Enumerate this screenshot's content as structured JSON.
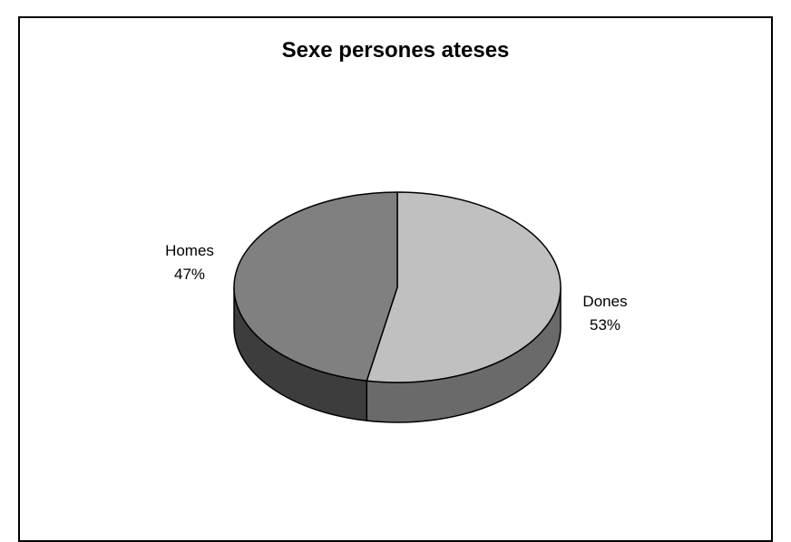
{
  "chart_data": {
    "type": "pie",
    "title": "Sexe persones ateses",
    "style": "3d",
    "slices": [
      {
        "name": "Dones",
        "value": 53,
        "label": "53%",
        "color": "#c0c0c0",
        "side_color": "#6a6a6a"
      },
      {
        "name": "Homes",
        "value": 47,
        "label": "47%",
        "color": "#808080",
        "side_color": "#3d3d3d"
      }
    ],
    "legend": "none",
    "data_labels": "category and percentage"
  }
}
